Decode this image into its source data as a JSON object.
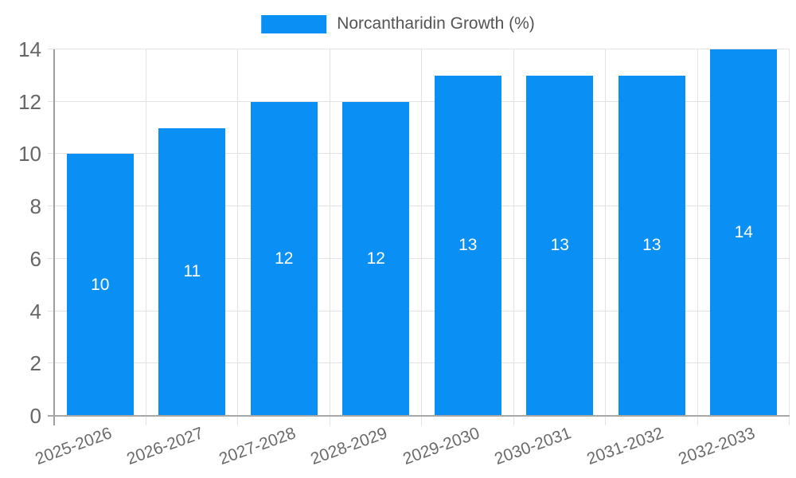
{
  "legend": {
    "label": "Norcantharidin Growth (%)"
  },
  "colors": {
    "bar": "#0a90f5",
    "grid": "#e3e3e3",
    "axis": "#9e9e9e",
    "ytick_text": "#666666",
    "xtick_text": "#6b6b6b",
    "legend_text": "#545454",
    "bar_label_text": "#ffffff",
    "background": "#ffffff"
  },
  "chart_data": {
    "type": "bar",
    "title": "",
    "xlabel": "",
    "ylabel": "",
    "categories": [
      "2025-2026",
      "2026-2027",
      "2027-2028",
      "2028-2029",
      "2029-2030",
      "2030-2031",
      "2031-2032",
      "2032-2033"
    ],
    "series": [
      {
        "name": "Norcantharidin Growth (%)",
        "values": [
          10,
          11,
          12,
          12,
          13,
          13,
          13,
          14
        ]
      }
    ],
    "bar_value_labels": [
      "10",
      "11",
      "12",
      "12",
      "13",
      "13",
      "13",
      "14"
    ],
    "ylim": [
      0,
      14
    ],
    "yticks": [
      0,
      2,
      4,
      6,
      8,
      10,
      12,
      14
    ],
    "grid": true,
    "legend_position": "top-center",
    "x_label_rotation_deg": -20
  }
}
